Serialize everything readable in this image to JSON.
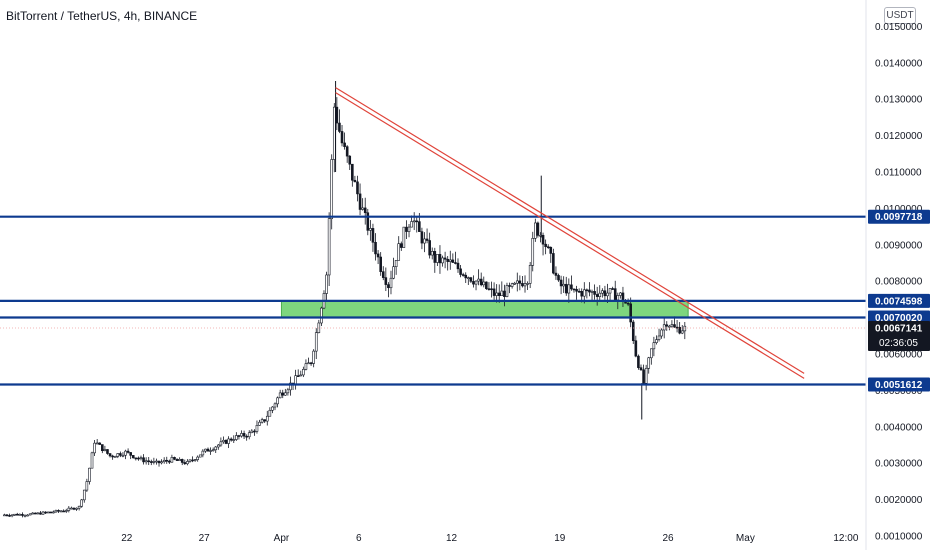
{
  "header": {
    "title": "BitTorrent / TetherUS, 4h, BINANCE",
    "unit": "USDT"
  },
  "colors": {
    "level_line": "#0d3a8f",
    "trend_line": "#e0443a",
    "zone_fill": "#7ed67e",
    "candle": "#131722",
    "axis_text": "#131722",
    "price_tag_bg": "#131722"
  },
  "chart_data": {
    "type": "candlestick",
    "symbol": "BitTorrent / TetherUS",
    "interval": "4h",
    "exchange": "BINANCE",
    "ylim": [
      0,
      0.015
    ],
    "y_ticks": [
      "0.0150000",
      "0.0140000",
      "0.0130000",
      "0.0120000",
      "0.0110000",
      "0.0100000",
      "0.0090000",
      "0.0080000",
      "0.0070000",
      "0.0060000",
      "0.0050000",
      "0.0040000",
      "0.0030000",
      "0.0020000",
      "0.0010000"
    ],
    "x_ticks": [
      {
        "label": "22",
        "day": 22
      },
      {
        "label": "27",
        "day": 27
      },
      {
        "label": "Apr",
        "day": 32
      },
      {
        "label": "6",
        "day": 37
      },
      {
        "label": "12",
        "day": 43
      },
      {
        "label": "19",
        "day": 50
      },
      {
        "label": "26",
        "day": 57
      },
      {
        "label": "May",
        "day": 62
      },
      {
        "label": "12:00",
        "day": 68.5
      }
    ],
    "horizontal_levels": [
      {
        "value": 0.0097718,
        "label": "0.0097718"
      },
      {
        "value": 0.0074598,
        "label": "0.0074598"
      },
      {
        "value": 0.007002,
        "label": "0.0070020"
      },
      {
        "value": 0.0051612,
        "label": "0.0051612"
      }
    ],
    "last_price": {
      "value": 0.0067141,
      "label": "0.0067141",
      "countdown": "02:36:05"
    },
    "zone": {
      "from": 0.007,
      "to": 0.00746,
      "day_start": 32,
      "day_end": 58.3
    },
    "trendline": [
      {
        "day": 35.5,
        "value": 0.01325
      },
      {
        "day": 65.8,
        "value": 0.0054
      }
    ],
    "price_path": [
      [
        14,
        0.00158
      ],
      [
        16,
        0.0016
      ],
      [
        18,
        0.0017
      ],
      [
        19,
        0.0018
      ],
      [
        19.5,
        0.0025
      ],
      [
        20,
        0.0036
      ],
      [
        21,
        0.0032
      ],
      [
        22,
        0.0033
      ],
      [
        23,
        0.0031
      ],
      [
        24,
        0.003
      ],
      [
        25,
        0.0031
      ],
      [
        26,
        0.003
      ],
      [
        27,
        0.0033
      ],
      [
        28,
        0.0035
      ],
      [
        29,
        0.0037
      ],
      [
        30,
        0.0038
      ],
      [
        31,
        0.0042
      ],
      [
        32,
        0.0049
      ],
      [
        33,
        0.0053
      ],
      [
        34,
        0.0058
      ],
      [
        34.6,
        0.0072
      ],
      [
        35,
        0.0082
      ],
      [
        35.5,
        0.0128
      ],
      [
        36,
        0.0118
      ],
      [
        36.5,
        0.0111
      ],
      [
        37,
        0.0104
      ],
      [
        37.5,
        0.0097
      ],
      [
        38,
        0.0091
      ],
      [
        38.5,
        0.0084
      ],
      [
        39,
        0.0079
      ],
      [
        39.5,
        0.0087
      ],
      [
        40,
        0.0093
      ],
      [
        40.5,
        0.0098
      ],
      [
        41,
        0.0093
      ],
      [
        42,
        0.0086
      ],
      [
        43,
        0.0085
      ],
      [
        44,
        0.0082
      ],
      [
        45,
        0.0079
      ],
      [
        46,
        0.0076
      ],
      [
        47,
        0.0078
      ],
      [
        48,
        0.0081
      ],
      [
        48.5,
        0.0095
      ],
      [
        49,
        0.0092
      ],
      [
        49.5,
        0.0086
      ],
      [
        50,
        0.0079
      ],
      [
        51,
        0.0077
      ],
      [
        52,
        0.0077
      ],
      [
        53,
        0.0077
      ],
      [
        54,
        0.0076
      ],
      [
        54.5,
        0.0073
      ],
      [
        55,
        0.006
      ],
      [
        55.5,
        0.0052
      ],
      [
        56,
        0.0061
      ],
      [
        56.5,
        0.0066
      ],
      [
        57,
        0.0069
      ],
      [
        57.5,
        0.0067
      ],
      [
        58,
        0.0067
      ]
    ]
  }
}
